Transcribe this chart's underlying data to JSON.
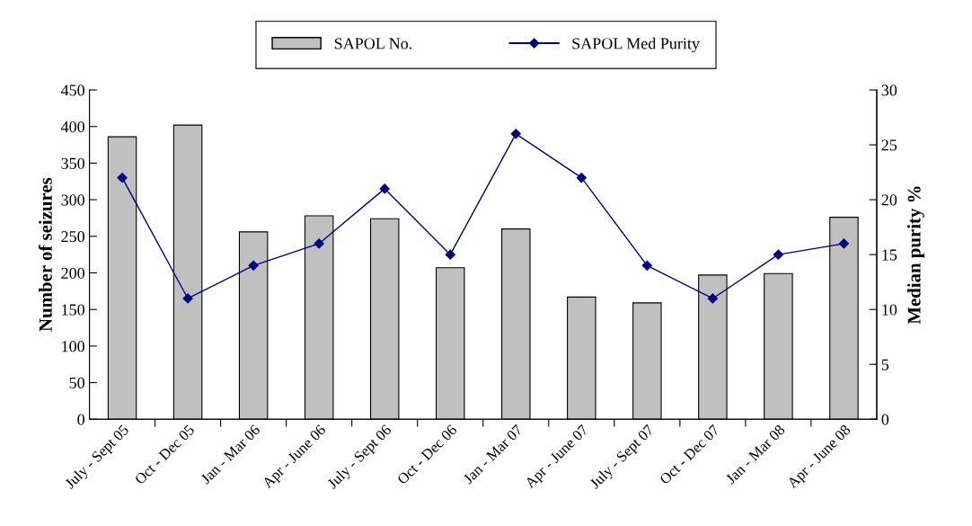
{
  "chart_data": {
    "type": "bar",
    "categories": [
      "July - Sept 05",
      "Oct - Dec 05",
      "Jan - Mar 06",
      "Apr - June 06",
      "July - Sept 06",
      "Oct - Dec 06",
      "Jan - Mar 07",
      "Apr - June 07",
      "July - Sept 07",
      "Oct - Dec 07",
      "Jan - Mar 08",
      "Apr - June 08"
    ],
    "series": [
      {
        "name": "SAPOL No.",
        "color": "#c0c0c0",
        "values": [
          386,
          402,
          256,
          278,
          274,
          207,
          260,
          167,
          159,
          197,
          199,
          276
        ]
      },
      {
        "name": "SAPOL Med Purity",
        "type": "line",
        "axis": "y2",
        "color": "#000080",
        "marker": "diamond",
        "values": [
          22,
          11,
          14,
          16,
          21,
          15,
          26,
          22,
          14,
          11,
          15,
          16
        ]
      }
    ],
    "ylabel": "Number of seizures",
    "y2label": "Median purity %",
    "ylim": [
      0,
      450
    ],
    "yticks": [
      0,
      50,
      100,
      150,
      200,
      250,
      300,
      350,
      400,
      450
    ],
    "y2lim": [
      0,
      30
    ],
    "y2ticks": [
      0,
      5,
      10,
      15,
      20,
      25,
      30
    ],
    "legend": "top",
    "grid": false
  }
}
